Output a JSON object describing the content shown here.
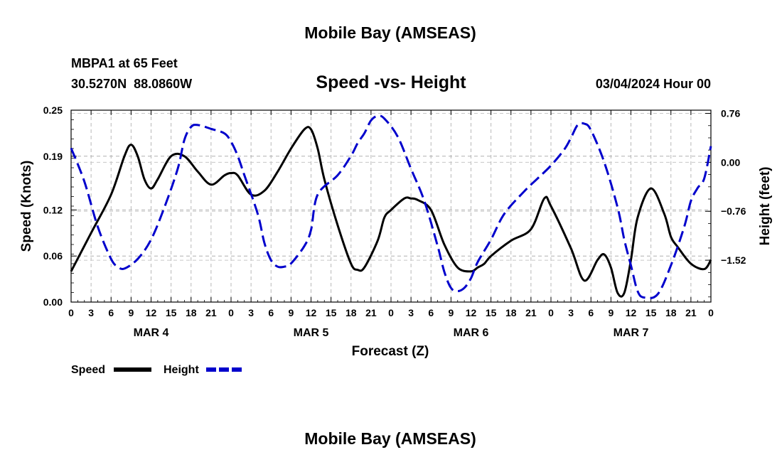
{
  "chart_data": {
    "type": "line",
    "title": "Mobile Bay (AMSEAS)",
    "subtitle": "Speed -vs- Height",
    "station": "MBPA1 at 65 Feet",
    "coords": "30.5270N  88.0860W",
    "date": "03/04/2024 Hour 00",
    "xlabel": "Forecast (Z)",
    "ylabel_left": "Speed (Knots)",
    "ylabel_right": "Height (feet)",
    "x_range_hours": [
      0,
      96
    ],
    "x_tick_step_hours": 3,
    "x_tick_labels": [
      "0",
      "3",
      "6",
      "9",
      "12",
      "15",
      "18",
      "21",
      "0",
      "3",
      "6",
      "9",
      "12",
      "15",
      "18",
      "21",
      "0",
      "3",
      "6",
      "9",
      "12",
      "15",
      "18",
      "21",
      "0",
      "3",
      "6",
      "9",
      "12",
      "15",
      "18",
      "21",
      "0"
    ],
    "day_labels": [
      {
        "label": "MAR 4",
        "hour": 12
      },
      {
        "label": "MAR 5",
        "hour": 36
      },
      {
        "label": "MAR 6",
        "hour": 60
      },
      {
        "label": "MAR 7",
        "hour": 84
      }
    ],
    "y_left": {
      "min": 0,
      "max": 0.25,
      "ticks": [
        0.0,
        0.06,
        0.12,
        0.19,
        0.25
      ],
      "tick_labels": [
        "0.00",
        "0.06",
        "0.12",
        "0.19",
        "0.25"
      ]
    },
    "y_right": {
      "min": -2.17,
      "max": 0.81,
      "ticks": [
        -1.52,
        -0.76,
        0.0,
        0.76
      ],
      "tick_labels": [
        "−1.52",
        "−0.76",
        "0.00",
        "0.76"
      ]
    },
    "grid": true,
    "series": [
      {
        "name": "Speed",
        "axis": "left",
        "color": "#000000",
        "dash": "solid",
        "x": [
          0,
          3,
          6,
          8,
          9,
          10,
          11,
          12,
          13,
          15,
          17,
          19,
          21,
          23,
          24,
          25,
          27,
          29,
          31,
          33,
          35,
          36,
          37,
          38,
          40,
          42,
          43,
          44,
          46,
          47,
          48,
          50,
          51,
          52,
          54,
          56,
          58,
          60,
          61,
          62,
          63,
          66,
          69,
          71,
          72,
          75,
          77,
          79,
          80,
          81,
          82,
          83,
          84,
          85,
          87,
          89,
          90,
          91,
          93,
          95,
          96
        ],
        "values": [
          0.04,
          0.09,
          0.14,
          0.19,
          0.205,
          0.19,
          0.16,
          0.148,
          0.16,
          0.19,
          0.19,
          0.17,
          0.153,
          0.165,
          0.168,
          0.165,
          0.14,
          0.145,
          0.17,
          0.2,
          0.225,
          0.225,
          0.2,
          0.16,
          0.1,
          0.05,
          0.042,
          0.045,
          0.08,
          0.11,
          0.12,
          0.135,
          0.135,
          0.133,
          0.12,
          0.075,
          0.045,
          0.04,
          0.045,
          0.05,
          0.06,
          0.08,
          0.095,
          0.135,
          0.125,
          0.07,
          0.028,
          0.055,
          0.062,
          0.045,
          0.012,
          0.012,
          0.055,
          0.11,
          0.148,
          0.115,
          0.085,
          0.072,
          0.05,
          0.043,
          0.055
        ]
      },
      {
        "name": "Height",
        "axis": "right",
        "color": "#0000cc",
        "dash": "dashed",
        "x": [
          0,
          2,
          4,
          6,
          7,
          8,
          10,
          12,
          14,
          16,
          17,
          18,
          19,
          21,
          23,
          24,
          25,
          26,
          28,
          29,
          30,
          31,
          32,
          33,
          35,
          36,
          37,
          40,
          42,
          43,
          44,
          45,
          46,
          47,
          49,
          51,
          53,
          55,
          56,
          57,
          58,
          59,
          60,
          61,
          63,
          65,
          68,
          70,
          72,
          74,
          75,
          76,
          77,
          78,
          80,
          82,
          83,
          84,
          85,
          86,
          88,
          90,
          92,
          93,
          94,
          95,
          96
        ],
        "values": [
          0.22,
          -0.3,
          -1.0,
          -1.5,
          -1.62,
          -1.65,
          -1.5,
          -1.2,
          -0.7,
          -0.1,
          0.35,
          0.55,
          0.58,
          0.52,
          0.45,
          0.32,
          0.1,
          -0.2,
          -0.8,
          -1.25,
          -1.52,
          -1.62,
          -1.62,
          -1.57,
          -1.3,
          -1.05,
          -0.5,
          -0.2,
          0.1,
          0.3,
          0.45,
          0.65,
          0.72,
          0.68,
          0.4,
          -0.1,
          -0.6,
          -1.3,
          -1.7,
          -1.95,
          -2.0,
          -1.95,
          -1.8,
          -1.55,
          -1.2,
          -0.8,
          -0.45,
          -0.25,
          -0.05,
          0.2,
          0.38,
          0.58,
          0.6,
          0.5,
          0.0,
          -0.7,
          -1.2,
          -1.6,
          -2.0,
          -2.1,
          -2.05,
          -1.6,
          -1.0,
          -0.6,
          -0.4,
          -0.25,
          0.25
        ]
      }
    ],
    "legend": {
      "placement": "bottom-left",
      "entries": [
        "Speed",
        "Height"
      ]
    },
    "footer_title": "Mobile Bay (AMSEAS)"
  }
}
